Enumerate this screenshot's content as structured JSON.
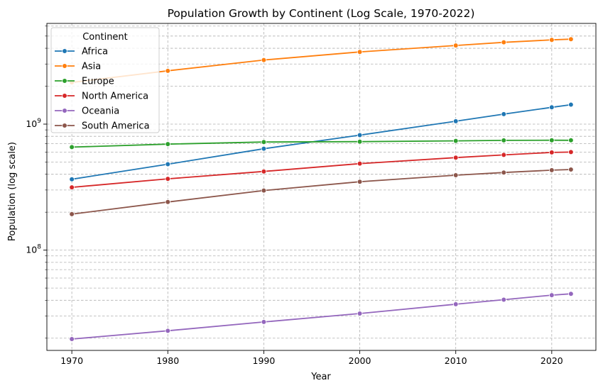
{
  "chart_data": {
    "type": "line",
    "title": "Population Growth by Continent (Log Scale, 1970-2022)",
    "xlabel": "Year",
    "ylabel": "Population (log scale)",
    "x_ticks": [
      1970,
      1980,
      1990,
      2000,
      2010,
      2020
    ],
    "x_tick_labels": [
      "1970",
      "1980",
      "1990",
      "2000",
      "2010",
      "2020"
    ],
    "xlim": [
      1967.4,
      2024.6
    ],
    "y_scale": "log",
    "ylim": [
      16000000,
      6300000000
    ],
    "y_major_ticks": [
      {
        "base": "10",
        "exp": "8",
        "value": 100000000
      },
      {
        "base": "10",
        "exp": "9",
        "value": 1000000000
      }
    ],
    "grid": true,
    "legend": {
      "title": "Continent",
      "placement": "top-left"
    },
    "x": [
      1970,
      1980,
      1990,
      2000,
      2010,
      2015,
      2020,
      2022
    ],
    "series": [
      {
        "name": "Africa",
        "color": "#1f77b4",
        "values": [
          365000000,
          481000000,
          638000000,
          818000000,
          1055000000,
          1201000000,
          1360000000,
          1427000000
        ]
      },
      {
        "name": "Asia",
        "color": "#ff7f0e",
        "values": [
          2144000000,
          2649000000,
          3226000000,
          3741000000,
          4210000000,
          4459000000,
          4664000000,
          4722000000
        ]
      },
      {
        "name": "Europe",
        "color": "#2ca02c",
        "values": [
          657000000,
          694000000,
          721000000,
          726000000,
          736000000,
          743000000,
          745000000,
          744000000
        ]
      },
      {
        "name": "North America",
        "color": "#d62728",
        "values": [
          315000000,
          368000000,
          421000000,
          486000000,
          542000000,
          570000000,
          596000000,
          600000000
        ]
      },
      {
        "name": "Oceania",
        "color": "#9467bd",
        "values": [
          19700000,
          22900000,
          26900000,
          31400000,
          37200000,
          40400000,
          43900000,
          45000000
        ]
      },
      {
        "name": "South America",
        "color": "#8c564b",
        "values": [
          193000000,
          241000000,
          297000000,
          349000000,
          393000000,
          413000000,
          431000000,
          436000000
        ]
      }
    ]
  }
}
